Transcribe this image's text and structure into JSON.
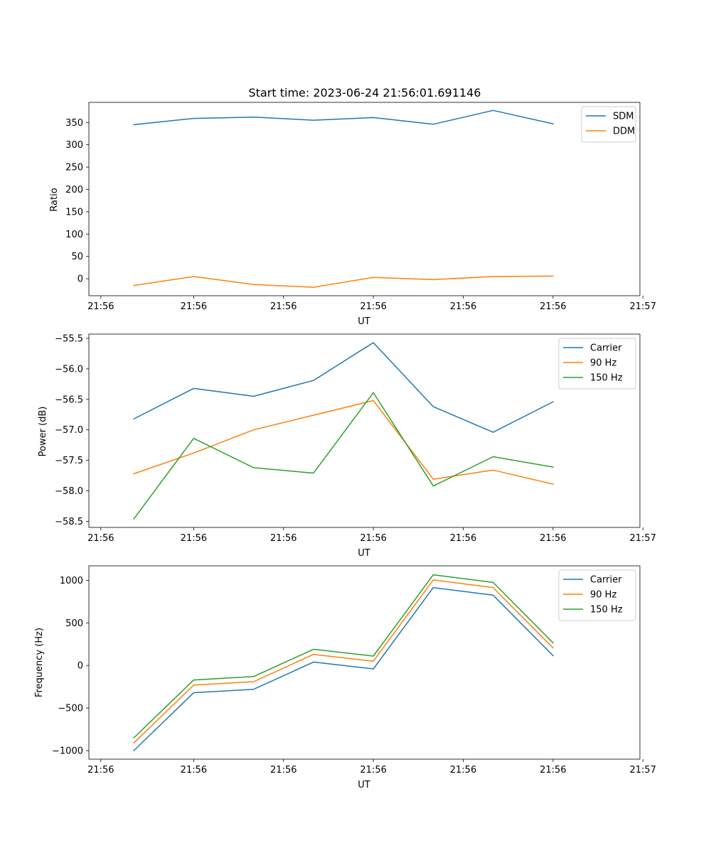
{
  "figure": {
    "title": "Start time: 2023-06-24 21:56:01.691146"
  },
  "colors": {
    "blue": "#1f77b4",
    "orange": "#ff7f0e",
    "green": "#2ca02c"
  },
  "chart_data": [
    {
      "type": "line",
      "title": "Start time: 2023-06-24 21:56:01.691146",
      "xlabel": "UT",
      "ylabel": "Ratio",
      "x": [
        1,
        2,
        3,
        4,
        5,
        6,
        7,
        8
      ],
      "xlim": [
        0.25,
        9.45
      ],
      "xticks": [
        0.45,
        2.0,
        3.5,
        5.0,
        6.5,
        8.0,
        9.5
      ],
      "xtick_labels": [
        "21:56",
        "21:56",
        "21:56",
        "21:56",
        "21:56",
        "21:56",
        "21:57"
      ],
      "ylim": [
        -38,
        395
      ],
      "yticks": [
        0,
        50,
        100,
        150,
        200,
        250,
        300,
        350
      ],
      "ytick_labels": [
        "0",
        "50",
        "100",
        "150",
        "200",
        "250",
        "300",
        "350"
      ],
      "legend": "top-right",
      "grid": false,
      "series": [
        {
          "name": "SDM",
          "color": "#1f77b4",
          "values": [
            345,
            359,
            362,
            355,
            361,
            346,
            377,
            347
          ]
        },
        {
          "name": "DDM",
          "color": "#ff7f0e",
          "values": [
            -15,
            5,
            -13,
            -19,
            3,
            -2,
            5,
            6
          ]
        }
      ]
    },
    {
      "type": "line",
      "title": "",
      "xlabel": "UT",
      "ylabel": "Power (dB)",
      "x": [
        1,
        2,
        3,
        4,
        5,
        6,
        7,
        8
      ],
      "xlim": [
        0.25,
        9.45
      ],
      "xticks": [
        0.45,
        2.0,
        3.5,
        5.0,
        6.5,
        8.0,
        9.5
      ],
      "xtick_labels": [
        "21:56",
        "21:56",
        "21:56",
        "21:56",
        "21:56",
        "21:56",
        "21:57"
      ],
      "ylim": [
        -58.6,
        -55.43
      ],
      "yticks": [
        -58.5,
        -58.0,
        -57.5,
        -57.0,
        -56.5,
        -56.0,
        -55.5
      ],
      "ytick_labels": [
        "−58.5",
        "−58.0",
        "−57.5",
        "−57.0",
        "−56.5",
        "−56.0",
        "−55.5"
      ],
      "legend": "top-right",
      "grid": false,
      "series": [
        {
          "name": "Carrier",
          "color": "#1f77b4",
          "values": [
            -56.82,
            -56.32,
            -56.45,
            -56.19,
            -55.57,
            -56.62,
            -57.04,
            -56.54
          ]
        },
        {
          "name": "90 Hz",
          "color": "#ff7f0e",
          "values": [
            -57.72,
            -57.38,
            -57.0,
            -56.76,
            -56.52,
            -57.81,
            -57.66,
            -57.89
          ]
        },
        {
          "name": "150 Hz",
          "color": "#2ca02c",
          "values": [
            -58.46,
            -57.14,
            -57.62,
            -57.71,
            -56.39,
            -57.92,
            -57.44,
            -57.61
          ]
        }
      ]
    },
    {
      "type": "line",
      "title": "",
      "xlabel": "UT",
      "ylabel": "Frequency (Hz)",
      "x": [
        1,
        2,
        3,
        4,
        5,
        6,
        7,
        8
      ],
      "xlim": [
        0.25,
        9.45
      ],
      "xticks": [
        0.45,
        2.0,
        3.5,
        5.0,
        6.5,
        8.0,
        9.5
      ],
      "xtick_labels": [
        "21:56",
        "21:56",
        "21:56",
        "21:56",
        "21:56",
        "21:56",
        "21:57"
      ],
      "ylim": [
        -1100,
        1170
      ],
      "yticks": [
        -1000,
        -500,
        0,
        500,
        1000
      ],
      "ytick_labels": [
        "−1000",
        "−500",
        "0",
        "500",
        "1000"
      ],
      "legend": "top-right",
      "grid": false,
      "series": [
        {
          "name": "Carrier",
          "color": "#1f77b4",
          "values": [
            -1000,
            -320,
            -280,
            40,
            -40,
            915,
            825,
            115
          ]
        },
        {
          "name": "90 Hz",
          "color": "#ff7f0e",
          "values": [
            -910,
            -230,
            -190,
            130,
            50,
            1005,
            915,
            205
          ]
        },
        {
          "name": "150 Hz",
          "color": "#2ca02c",
          "values": [
            -850,
            -170,
            -130,
            190,
            110,
            1065,
            975,
            265
          ]
        }
      ]
    }
  ]
}
